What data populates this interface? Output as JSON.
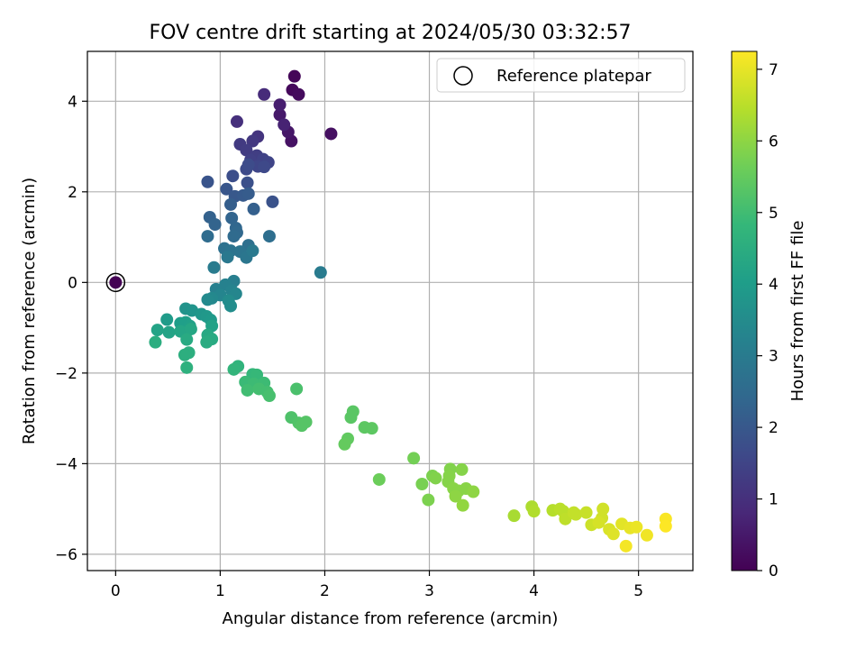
{
  "chart_data": {
    "type": "scatter",
    "title": "FOV centre drift starting at 2024/05/30 03:32:57",
    "xlabel": "Angular distance from reference (arcmin)",
    "ylabel": "Rotation from reference (arcmin)",
    "xlim": [
      -0.27,
      5.52
    ],
    "ylim": [
      -6.36,
      5.1
    ],
    "xticks": [
      0,
      1,
      2,
      3,
      4,
      5
    ],
    "yticks": [
      -6,
      -4,
      -2,
      0,
      2,
      4
    ],
    "grid": true,
    "legend": {
      "location": "upper right",
      "entries": [
        "Reference platepar"
      ]
    },
    "colorbar": {
      "label": "Hours from first FF file",
      "colormap": "viridis",
      "range": [
        0,
        7.25
      ],
      "ticks": [
        0,
        1,
        2,
        3,
        4,
        5,
        6,
        7
      ]
    },
    "reference_point": {
      "x": 0,
      "y": 0,
      "marker": "open circle",
      "label": "Reference platepar"
    },
    "series": [
      {
        "points": [
          {
            "x": 0.0,
            "y": 0.0,
            "c": 0.0
          },
          {
            "x": 1.71,
            "y": 4.55,
            "c": 0.1
          },
          {
            "x": 1.69,
            "y": 4.25,
            "c": 0.15
          },
          {
            "x": 1.75,
            "y": 4.15,
            "c": 0.2
          },
          {
            "x": 2.06,
            "y": 3.28,
            "c": 0.3
          },
          {
            "x": 1.68,
            "y": 3.12,
            "c": 0.35
          },
          {
            "x": 1.65,
            "y": 3.32,
            "c": 0.45
          },
          {
            "x": 1.57,
            "y": 3.7,
            "c": 0.5
          },
          {
            "x": 1.57,
            "y": 3.92,
            "c": 0.6
          },
          {
            "x": 1.61,
            "y": 3.48,
            "c": 0.7
          },
          {
            "x": 1.42,
            "y": 4.15,
            "c": 0.9
          },
          {
            "x": 1.16,
            "y": 3.55,
            "c": 1.0
          },
          {
            "x": 1.36,
            "y": 3.22,
            "c": 1.1
          },
          {
            "x": 1.31,
            "y": 3.12,
            "c": 1.2
          },
          {
            "x": 1.19,
            "y": 3.05,
            "c": 1.25
          },
          {
            "x": 1.25,
            "y": 2.92,
            "c": 1.3
          },
          {
            "x": 1.35,
            "y": 2.8,
            "c": 1.35
          },
          {
            "x": 1.29,
            "y": 2.7,
            "c": 1.4
          },
          {
            "x": 1.41,
            "y": 2.72,
            "c": 1.45
          },
          {
            "x": 1.46,
            "y": 2.65,
            "c": 1.5
          },
          {
            "x": 1.36,
            "y": 2.56,
            "c": 1.55
          },
          {
            "x": 1.42,
            "y": 2.55,
            "c": 1.6
          },
          {
            "x": 1.25,
            "y": 2.5,
            "c": 1.65
          },
          {
            "x": 1.27,
            "y": 2.6,
            "c": 1.7
          },
          {
            "x": 1.12,
            "y": 2.35,
            "c": 1.75
          },
          {
            "x": 1.26,
            "y": 2.2,
            "c": 1.8
          },
          {
            "x": 1.5,
            "y": 1.78,
            "c": 1.85
          },
          {
            "x": 0.88,
            "y": 2.22,
            "c": 1.9
          },
          {
            "x": 1.06,
            "y": 2.06,
            "c": 1.95
          },
          {
            "x": 1.14,
            "y": 1.9,
            "c": 2.0
          },
          {
            "x": 1.22,
            "y": 1.92,
            "c": 2.05
          },
          {
            "x": 1.27,
            "y": 1.96,
            "c": 2.1
          },
          {
            "x": 1.1,
            "y": 1.72,
            "c": 2.15
          },
          {
            "x": 1.32,
            "y": 1.62,
            "c": 2.2
          },
          {
            "x": 0.9,
            "y": 1.44,
            "c": 2.25
          },
          {
            "x": 0.95,
            "y": 1.28,
            "c": 2.3
          },
          {
            "x": 1.11,
            "y": 1.42,
            "c": 2.35
          },
          {
            "x": 1.15,
            "y": 1.2,
            "c": 2.4
          },
          {
            "x": 1.16,
            "y": 1.1,
            "c": 2.45
          },
          {
            "x": 1.13,
            "y": 1.02,
            "c": 2.5
          },
          {
            "x": 0.88,
            "y": 1.02,
            "c": 2.55
          },
          {
            "x": 1.47,
            "y": 1.02,
            "c": 2.6
          },
          {
            "x": 1.27,
            "y": 0.82,
            "c": 2.65
          },
          {
            "x": 1.04,
            "y": 0.75,
            "c": 2.7
          },
          {
            "x": 1.1,
            "y": 0.7,
            "c": 2.75
          },
          {
            "x": 1.19,
            "y": 0.68,
            "c": 2.8
          },
          {
            "x": 1.25,
            "y": 0.55,
            "c": 2.85
          },
          {
            "x": 1.07,
            "y": 0.56,
            "c": 2.9
          },
          {
            "x": 1.31,
            "y": 0.7,
            "c": 2.95
          },
          {
            "x": 0.94,
            "y": 0.33,
            "c": 3.0
          },
          {
            "x": 1.96,
            "y": 0.22,
            "c": 3.0
          },
          {
            "x": 1.13,
            "y": 0.03,
            "c": 3.1
          },
          {
            "x": 0.96,
            "y": -0.15,
            "c": 3.15
          },
          {
            "x": 1.05,
            "y": -0.05,
            "c": 3.2
          },
          {
            "x": 1.11,
            "y": -0.18,
            "c": 3.25
          },
          {
            "x": 1.0,
            "y": -0.28,
            "c": 3.3
          },
          {
            "x": 1.15,
            "y": -0.25,
            "c": 3.35
          },
          {
            "x": 0.92,
            "y": -0.35,
            "c": 3.4
          },
          {
            "x": 0.88,
            "y": -0.38,
            "c": 3.45
          },
          {
            "x": 1.08,
            "y": -0.4,
            "c": 3.5
          },
          {
            "x": 1.1,
            "y": -0.52,
            "c": 3.55
          },
          {
            "x": 0.67,
            "y": -0.58,
            "c": 3.7
          },
          {
            "x": 0.73,
            "y": -0.62,
            "c": 3.75
          },
          {
            "x": 0.82,
            "y": -0.7,
            "c": 3.8
          },
          {
            "x": 0.87,
            "y": -0.75,
            "c": 3.85
          },
          {
            "x": 0.91,
            "y": -0.83,
            "c": 3.9
          },
          {
            "x": 0.49,
            "y": -0.82,
            "c": 3.95
          },
          {
            "x": 0.62,
            "y": -0.9,
            "c": 4.0
          },
          {
            "x": 0.67,
            "y": -0.88,
            "c": 4.05
          },
          {
            "x": 0.71,
            "y": -0.96,
            "c": 4.1
          },
          {
            "x": 0.92,
            "y": -0.96,
            "c": 4.15
          },
          {
            "x": 0.4,
            "y": -1.05,
            "c": 4.2
          },
          {
            "x": 0.51,
            "y": -1.1,
            "c": 4.2
          },
          {
            "x": 0.62,
            "y": -1.08,
            "c": 4.25
          },
          {
            "x": 0.72,
            "y": -1.03,
            "c": 4.3
          },
          {
            "x": 0.88,
            "y": -1.16,
            "c": 4.35
          },
          {
            "x": 0.92,
            "y": -1.25,
            "c": 4.4
          },
          {
            "x": 0.87,
            "y": -1.32,
            "c": 4.45
          },
          {
            "x": 0.68,
            "y": -1.26,
            "c": 4.4
          },
          {
            "x": 0.38,
            "y": -1.32,
            "c": 4.5
          },
          {
            "x": 0.7,
            "y": -1.55,
            "c": 4.55
          },
          {
            "x": 0.66,
            "y": -1.6,
            "c": 4.55
          },
          {
            "x": 0.68,
            "y": -1.88,
            "c": 4.6
          },
          {
            "x": 1.17,
            "y": -1.85,
            "c": 4.7
          },
          {
            "x": 1.13,
            "y": -1.92,
            "c": 4.75
          },
          {
            "x": 1.31,
            "y": -2.03,
            "c": 4.8
          },
          {
            "x": 1.35,
            "y": -2.04,
            "c": 4.85
          },
          {
            "x": 1.24,
            "y": -2.2,
            "c": 4.9
          },
          {
            "x": 1.32,
            "y": -2.24,
            "c": 4.95
          },
          {
            "x": 1.42,
            "y": -2.22,
            "c": 4.95
          },
          {
            "x": 1.26,
            "y": -2.38,
            "c": 5.0
          },
          {
            "x": 1.37,
            "y": -2.35,
            "c": 5.05
          },
          {
            "x": 1.45,
            "y": -2.42,
            "c": 5.05
          },
          {
            "x": 1.47,
            "y": -2.5,
            "c": 5.1
          },
          {
            "x": 1.73,
            "y": -2.35,
            "c": 5.15
          },
          {
            "x": 1.68,
            "y": -2.98,
            "c": 5.2
          },
          {
            "x": 1.75,
            "y": -3.1,
            "c": 5.25
          },
          {
            "x": 1.78,
            "y": -3.16,
            "c": 5.3
          },
          {
            "x": 1.82,
            "y": -3.08,
            "c": 5.3
          },
          {
            "x": 2.27,
            "y": -2.85,
            "c": 5.35
          },
          {
            "x": 2.25,
            "y": -2.98,
            "c": 5.35
          },
          {
            "x": 2.38,
            "y": -3.2,
            "c": 5.4
          },
          {
            "x": 2.45,
            "y": -3.22,
            "c": 5.4
          },
          {
            "x": 2.22,
            "y": -3.45,
            "c": 5.45
          },
          {
            "x": 2.19,
            "y": -3.57,
            "c": 5.5
          },
          {
            "x": 2.52,
            "y": -4.35,
            "c": 5.6
          },
          {
            "x": 2.85,
            "y": -3.88,
            "c": 5.7
          },
          {
            "x": 2.93,
            "y": -4.45,
            "c": 5.75
          },
          {
            "x": 2.99,
            "y": -4.8,
            "c": 5.8
          },
          {
            "x": 3.03,
            "y": -4.27,
            "c": 5.8
          },
          {
            "x": 3.06,
            "y": -4.32,
            "c": 5.85
          },
          {
            "x": 3.2,
            "y": -4.12,
            "c": 5.85
          },
          {
            "x": 3.19,
            "y": -4.27,
            "c": 5.9
          },
          {
            "x": 3.18,
            "y": -4.4,
            "c": 5.9
          },
          {
            "x": 3.31,
            "y": -4.13,
            "c": 5.9
          },
          {
            "x": 3.23,
            "y": -4.55,
            "c": 5.95
          },
          {
            "x": 3.28,
            "y": -4.6,
            "c": 5.95
          },
          {
            "x": 3.35,
            "y": -4.55,
            "c": 5.95
          },
          {
            "x": 3.25,
            "y": -4.72,
            "c": 6.0
          },
          {
            "x": 3.42,
            "y": -4.62,
            "c": 6.0
          },
          {
            "x": 3.32,
            "y": -4.92,
            "c": 6.05
          },
          {
            "x": 3.81,
            "y": -5.15,
            "c": 6.3
          },
          {
            "x": 3.98,
            "y": -4.95,
            "c": 6.35
          },
          {
            "x": 4.0,
            "y": -5.05,
            "c": 6.4
          },
          {
            "x": 4.18,
            "y": -5.03,
            "c": 6.45
          },
          {
            "x": 4.25,
            "y": -5.0,
            "c": 6.5
          },
          {
            "x": 4.28,
            "y": -5.05,
            "c": 6.5
          },
          {
            "x": 4.3,
            "y": -5.22,
            "c": 6.55
          },
          {
            "x": 4.38,
            "y": -5.08,
            "c": 6.6
          },
          {
            "x": 4.4,
            "y": -5.12,
            "c": 6.6
          },
          {
            "x": 4.5,
            "y": -5.08,
            "c": 6.65
          },
          {
            "x": 4.55,
            "y": -5.35,
            "c": 6.7
          },
          {
            "x": 4.66,
            "y": -5.0,
            "c": 6.75
          },
          {
            "x": 4.65,
            "y": -5.2,
            "c": 6.75
          },
          {
            "x": 4.62,
            "y": -5.3,
            "c": 6.8
          },
          {
            "x": 4.72,
            "y": -5.45,
            "c": 6.85
          },
          {
            "x": 4.76,
            "y": -5.55,
            "c": 6.9
          },
          {
            "x": 4.84,
            "y": -5.33,
            "c": 6.95
          },
          {
            "x": 4.92,
            "y": -5.42,
            "c": 7.0
          },
          {
            "x": 4.98,
            "y": -5.4,
            "c": 7.05
          },
          {
            "x": 5.08,
            "y": -5.58,
            "c": 7.1
          },
          {
            "x": 4.88,
            "y": -5.82,
            "c": 7.15
          },
          {
            "x": 5.26,
            "y": -5.22,
            "c": 7.2
          },
          {
            "x": 5.26,
            "y": -5.38,
            "c": 7.25
          }
        ]
      }
    ]
  }
}
